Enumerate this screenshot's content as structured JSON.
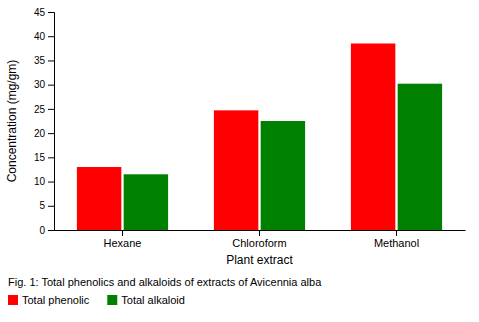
{
  "chart_data": {
    "type": "bar",
    "categories": [
      "Hexane",
      "Chloroform",
      "Methanol"
    ],
    "series": [
      {
        "name": "Total phenolic",
        "color": "#FF0000",
        "values": [
          13.0,
          24.7,
          38.5
        ]
      },
      {
        "name": "Total alkaloid",
        "color": "#008000",
        "values": [
          11.5,
          22.5,
          30.2
        ]
      }
    ],
    "x_label": "Plant extract",
    "y_label": "Concentration (mg/gm)",
    "ylim": [
      0,
      45
    ],
    "yticks": [
      0,
      5,
      10,
      15,
      20,
      25,
      30,
      35,
      40,
      45
    ],
    "annotations": [
      "Fig. 1:  Total phenolics and alkaloids of extracts of Avicennia alba"
    ],
    "legend": "bottom",
    "grid": false
  }
}
